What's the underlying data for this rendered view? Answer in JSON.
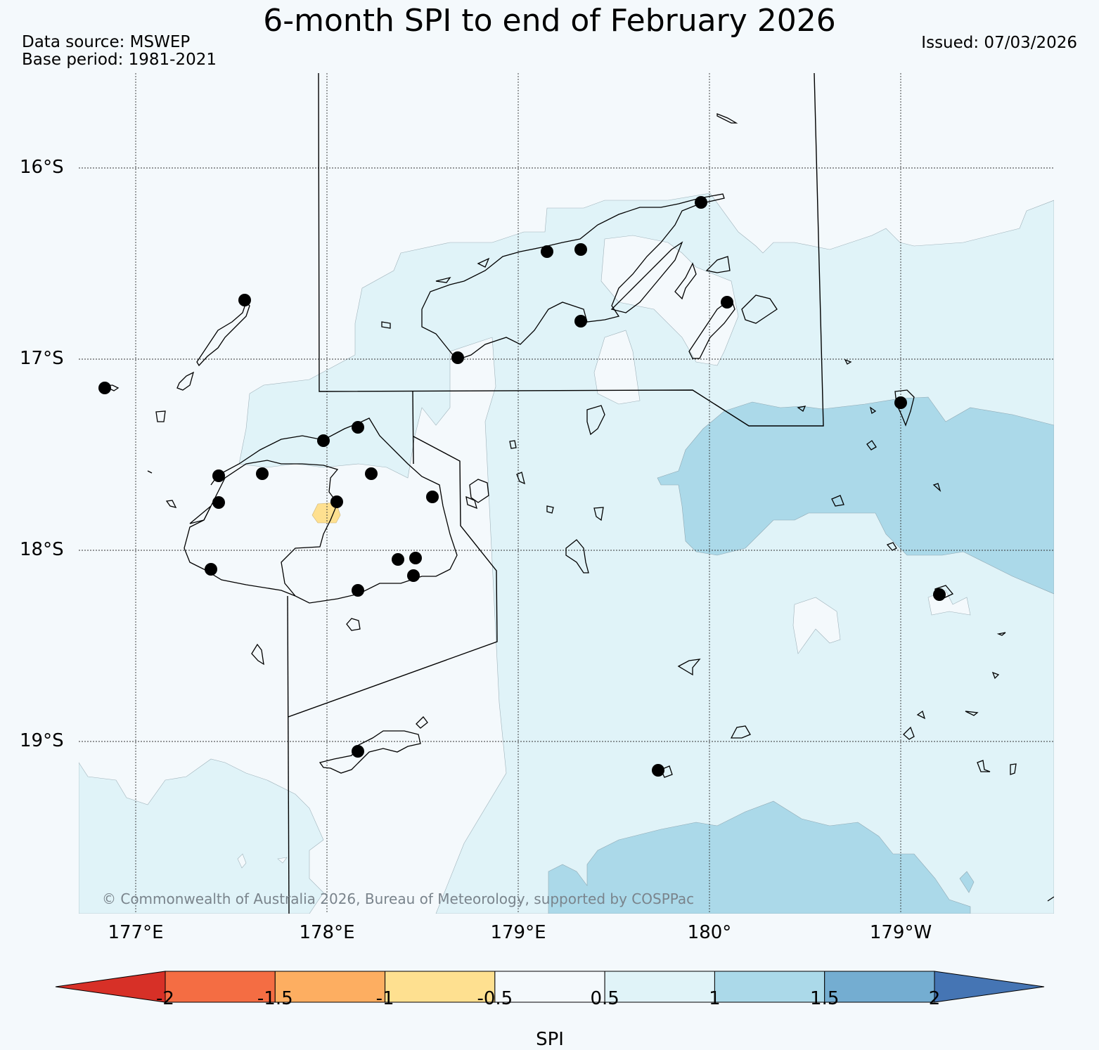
{
  "title": "6-month SPI to end of February 2026",
  "data_source": "Data source: MSWEP",
  "base_period": "Base period: 1981-2021",
  "issued": "Issued: 07/03/2026",
  "copyright": "© Commonwealth of Australia 2026, Bureau of Meteorology, supported by COSPPac",
  "lat_labels": [
    "16°S",
    "17°S",
    "18°S",
    "19°S"
  ],
  "lon_labels": [
    "177°E",
    "178°E",
    "179°E",
    "180°",
    "179°W"
  ],
  "colorbar": {
    "title": "SPI",
    "ticks": [
      "-2",
      "-1.5",
      "-1",
      "-0.5",
      "0.5",
      "1",
      "1.5",
      "2"
    ],
    "colors": [
      "#d73027",
      "#f46d43",
      "#fdae61",
      "#fee090",
      "#f4f9fc",
      "#e0f3f8",
      "#abd9e9",
      "#74add1",
      "#4575b4"
    ]
  }
}
